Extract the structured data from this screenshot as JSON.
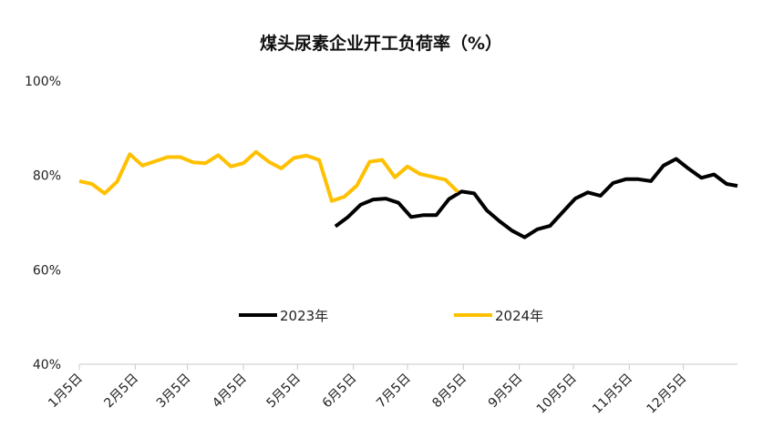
{
  "chart_data": {
    "type": "line",
    "title": "煤头尿素企业开工负荷率（%）",
    "xlabel": "",
    "ylabel": "",
    "ylim": [
      40,
      100
    ],
    "y_ticks": [
      "40%",
      "60%",
      "80%",
      "100%"
    ],
    "y_tick_values": [
      40,
      60,
      80,
      100
    ],
    "x_ticks": [
      "1月5日",
      "2月5日",
      "3月5日",
      "4月5日",
      "5月5日",
      "6月5日",
      "7月5日",
      "8月5日",
      "9月5日",
      "10月5日",
      "11月5日",
      "12月5日"
    ],
    "x_tick_values": [
      0,
      31,
      60,
      91,
      121,
      152,
      182,
      213,
      244,
      274,
      305,
      335
    ],
    "x_range": [
      0,
      365
    ],
    "grid": false,
    "legend_position": "center",
    "series": [
      {
        "name": "2023年",
        "color": "#000000",
        "x": [
          142,
          149,
          156,
          163,
          170,
          177,
          184,
          191,
          198,
          205,
          212,
          219,
          226,
          233,
          240,
          247,
          254,
          261,
          268,
          275,
          282,
          289,
          296,
          303,
          310,
          317,
          324,
          331,
          338,
          345,
          352,
          359,
          365
        ],
        "values": [
          69.2,
          71.2,
          73.8,
          74.9,
          75.1,
          74.2,
          71.2,
          71.6,
          71.6,
          75.0,
          76.6,
          76.2,
          72.6,
          70.3,
          68.3,
          66.9,
          68.6,
          69.3,
          72.2,
          75.1,
          76.4,
          75.7,
          78.4,
          79.2,
          79.2,
          78.8,
          82.1,
          83.5,
          81.4,
          79.5,
          80.2,
          78.2,
          77.8
        ]
      },
      {
        "name": "2024年",
        "color": "#FFC000",
        "x": [
          0,
          7,
          14,
          21,
          28,
          35,
          42,
          49,
          56,
          63,
          70,
          77,
          84,
          91,
          98,
          105,
          112,
          119,
          126,
          133,
          140,
          147,
          154,
          161,
          168,
          175,
          182,
          189,
          196,
          203,
          210
        ],
        "values": [
          78.8,
          78.2,
          76.2,
          78.7,
          84.5,
          82.1,
          83.0,
          83.9,
          83.9,
          82.8,
          82.6,
          84.3,
          81.9,
          82.6,
          85.0,
          82.9,
          81.5,
          83.7,
          84.2,
          83.3,
          74.6,
          75.5,
          77.9,
          82.9,
          83.3,
          79.6,
          81.9,
          80.3,
          79.7,
          79.1,
          76.5
        ]
      }
    ]
  }
}
